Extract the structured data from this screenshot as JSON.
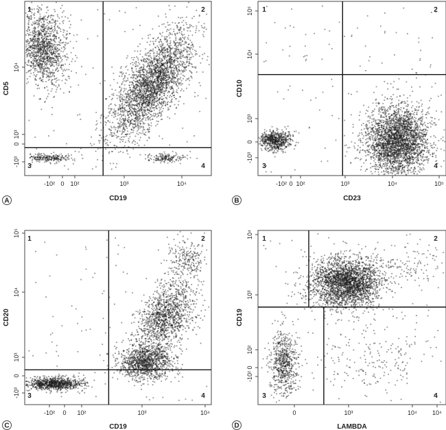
{
  "chart_data": [
    {
      "type": "scatter",
      "panel_label": "A",
      "xlabel": "CD19",
      "ylabel": "CD5",
      "x_ticks": [
        "-10²",
        "0",
        "10²",
        "10³",
        "10⁴"
      ],
      "y_ticks": [
        "-10³",
        "0",
        "10³",
        "10⁴"
      ],
      "quadrant_labels": [
        "1",
        "2",
        "3",
        "4"
      ],
      "quadrant_gates": {
        "x": 0.42,
        "y": 0.16
      },
      "populations": [
        {
          "quadrant": "1",
          "x": 0.1,
          "y": 0.73,
          "spread_x": 0.065,
          "spread_y": 0.11,
          "n": 1300
        },
        {
          "quadrant": "2",
          "x": 0.68,
          "y": 0.52,
          "spread_x": 0.11,
          "spread_y": 0.11,
          "n": 2700
        },
        {
          "quadrant": "3",
          "x": 0.13,
          "y": 0.1,
          "spread_x": 0.055,
          "spread_y": 0.012,
          "n": 220
        },
        {
          "quadrant": "4",
          "x": 0.76,
          "y": 0.1,
          "spread_x": 0.05,
          "spread_y": 0.012,
          "n": 160
        }
      ]
    },
    {
      "type": "scatter",
      "panel_label": "B",
      "xlabel": "CD23",
      "ylabel": "CD10",
      "x_ticks": [
        "-10²",
        "0",
        "10²",
        "10³",
        "10⁴",
        "10⁵"
      ],
      "y_ticks": [
        "-10³",
        "0",
        "10³",
        "10⁴",
        "10⁵"
      ],
      "quadrant_labels": [
        "1",
        "2",
        "3",
        "4"
      ],
      "quadrant_gates": {
        "x": 0.45,
        "y": 0.58
      },
      "populations": [
        {
          "quadrant": "3",
          "x": 0.09,
          "y": 0.2,
          "spread_x": 0.045,
          "spread_y": 0.03,
          "n": 650
        },
        {
          "quadrant": "4",
          "x": 0.74,
          "y": 0.2,
          "spread_x": 0.085,
          "spread_y": 0.1,
          "n": 2900
        }
      ]
    },
    {
      "type": "scatter",
      "panel_label": "C",
      "xlabel": "CD19",
      "ylabel": "CD20",
      "x_ticks": [
        "-10²",
        "0",
        "10²",
        "10³",
        "10⁴"
      ],
      "y_ticks": [
        "-10³",
        "0",
        "10³",
        "10⁴",
        "10⁵"
      ],
      "quadrant_labels": [
        "1",
        "2",
        "3",
        "4"
      ],
      "quadrant_gates": {
        "x": 0.45,
        "y": 0.2
      },
      "populations": [
        {
          "quadrant": "3",
          "x": 0.16,
          "y": 0.12,
          "spread_x": 0.075,
          "spread_y": 0.018,
          "n": 900
        },
        {
          "quadrant": "4",
          "x": 0.65,
          "y": 0.24,
          "spread_x": 0.07,
          "spread_y": 0.05,
          "n": 1100
        },
        {
          "quadrant": "2",
          "x": 0.75,
          "y": 0.5,
          "spread_x": 0.07,
          "spread_y": 0.11,
          "n": 1300
        },
        {
          "quadrant": "2",
          "x": 0.86,
          "y": 0.84,
          "spread_x": 0.05,
          "spread_y": 0.06,
          "n": 220
        }
      ]
    },
    {
      "type": "scatter",
      "panel_label": "D",
      "xlabel": "LAMBDA",
      "ylabel": "CD19",
      "x_ticks": [
        "0",
        "10³",
        "10⁴",
        "10⁴"
      ],
      "y_ticks": [
        "-10²",
        "0",
        "10²",
        "10³",
        "10⁴"
      ],
      "quadrant_labels": [
        "1",
        "2",
        "3",
        "4"
      ],
      "quadrant_gates": {
        "x": 0.27,
        "y": 0.56
      },
      "quadrant_gate_lower_x": 0.35,
      "populations": [
        {
          "quadrant": "1",
          "x": 0.47,
          "y": 0.7,
          "spread_x": 0.095,
          "spread_y": 0.07,
          "n": 2600
        },
        {
          "quadrant": "3",
          "x": 0.14,
          "y": 0.24,
          "spread_x": 0.035,
          "spread_y": 0.09,
          "n": 650
        },
        {
          "quadrant": "4",
          "x": 0.62,
          "y": 0.25,
          "spread_x": 0.14,
          "spread_y": 0.1,
          "n": 180
        },
        {
          "quadrant": "2",
          "x": 0.8,
          "y": 0.8,
          "spread_x": 0.13,
          "spread_y": 0.06,
          "n": 130
        }
      ]
    }
  ]
}
